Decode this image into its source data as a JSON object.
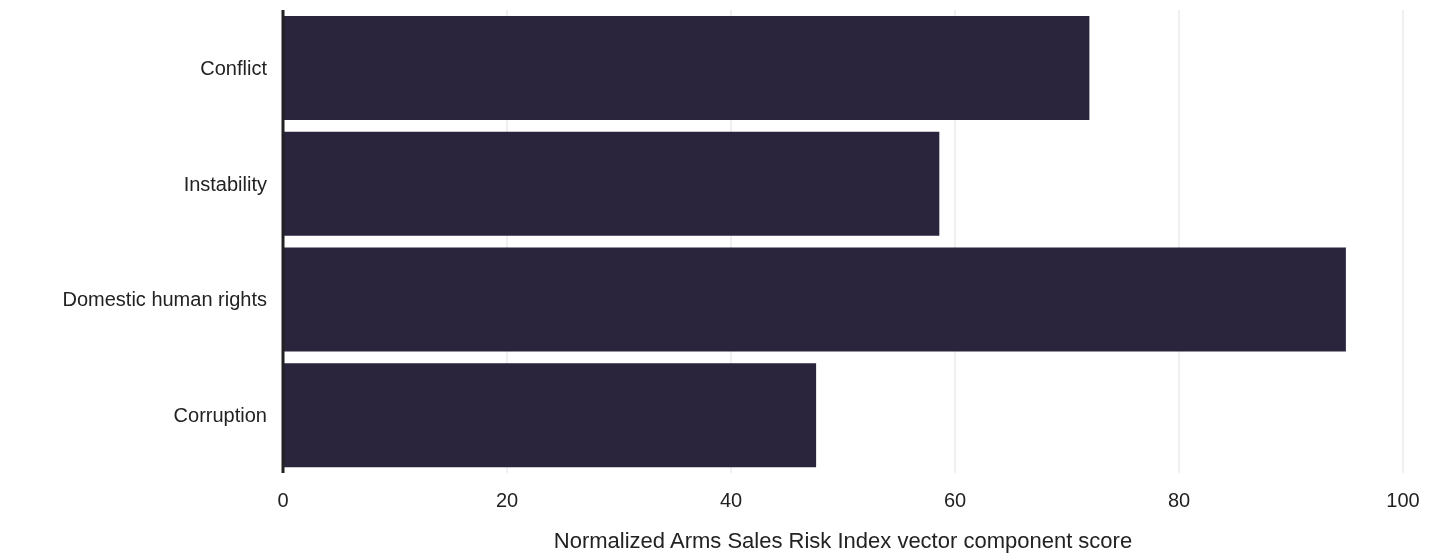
{
  "chart_data": {
    "type": "bar",
    "orientation": "horizontal",
    "xlabel": "Normalized Arms Sales Risk Index vector component score",
    "categories": [
      "Conflict",
      "Instability",
      "Domestic human rights",
      "Corruption"
    ],
    "values": [
      72.0,
      58.6,
      94.9,
      47.6
    ],
    "color": "#2a243d",
    "xlim": [
      0,
      100
    ],
    "xticks": [
      0,
      20,
      40,
      60,
      80,
      100
    ],
    "grid": "x"
  }
}
